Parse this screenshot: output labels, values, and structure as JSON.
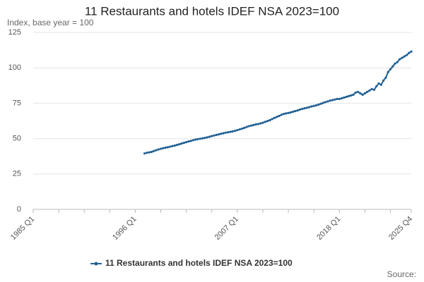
{
  "chart_data": {
    "type": "line",
    "title": "11 Restaurants and hotels IDEF NSA 2023=100",
    "y_label": "Index, base year = 100",
    "source": "Source:",
    "categories": [
      "1985 Q1",
      null,
      null,
      null,
      null,
      null,
      null,
      null,
      null,
      null,
      null,
      null,
      null,
      null,
      null,
      null,
      null,
      null,
      null,
      null,
      null,
      null,
      null,
      null,
      null,
      null,
      null,
      null,
      null,
      null,
      null,
      null,
      null,
      null,
      null,
      null,
      null,
      null,
      null,
      null,
      null,
      null,
      null,
      null,
      "1996 Q1",
      null,
      null,
      null,
      null,
      null,
      null,
      null,
      null,
      null,
      null,
      null,
      null,
      null,
      null,
      null,
      null,
      null,
      null,
      null,
      null,
      null,
      null,
      null,
      null,
      null,
      null,
      null,
      null,
      null,
      null,
      null,
      null,
      null,
      null,
      null,
      null,
      null,
      null,
      null,
      null,
      null,
      null,
      null,
      "2007 Q1",
      null,
      null,
      null,
      null,
      null,
      null,
      null,
      null,
      null,
      null,
      null,
      null,
      null,
      null,
      null,
      null,
      null,
      null,
      null,
      null,
      null,
      null,
      null,
      null,
      null,
      null,
      null,
      null,
      null,
      null,
      null,
      null,
      null,
      null,
      null,
      null,
      null,
      null,
      null,
      null,
      null,
      null,
      null,
      "2018 Q1",
      null,
      null,
      null,
      null,
      null,
      null,
      null,
      null,
      null,
      null,
      null,
      null,
      null,
      null,
      null,
      null,
      null,
      null,
      null,
      null,
      null,
      null,
      null,
      null,
      null,
      null,
      null,
      null,
      null,
      null,
      "2025 Q4"
    ],
    "series": [
      {
        "name": "11 Restaurants and hotels IDEF NSA 2023=100",
        "color": "#206095",
        "values": [
          null,
          null,
          null,
          null,
          null,
          null,
          null,
          null,
          null,
          null,
          null,
          null,
          null,
          null,
          null,
          null,
          null,
          null,
          null,
          null,
          null,
          null,
          null,
          null,
          null,
          null,
          null,
          null,
          null,
          null,
          null,
          null,
          null,
          null,
          null,
          null,
          null,
          null,
          null,
          null,
          null,
          null,
          null,
          null,
          null,
          null,
          null,
          null,
          39.5,
          40,
          40.3,
          40.6,
          41.2,
          41.8,
          42.3,
          42.8,
          43.2,
          43.6,
          43.9,
          44.3,
          44.7,
          45.1,
          45.5,
          46,
          46.5,
          47,
          47.5,
          48,
          48.4,
          48.9,
          49.3,
          49.6,
          49.9,
          50.2,
          50.5,
          50.9,
          51.3,
          51.8,
          52.2,
          52.6,
          53,
          53.4,
          53.8,
          54.2,
          54.5,
          54.8,
          55.1,
          55.5,
          56,
          56.5,
          57,
          57.6,
          58.2,
          58.8,
          59.2,
          59.6,
          60,
          60.3,
          60.7,
          61.2,
          61.8,
          62.4,
          63,
          63.8,
          64.6,
          65.3,
          66,
          66.8,
          67.4,
          67.8,
          68.1,
          68.5,
          69,
          69.4,
          69.9,
          70.5,
          71,
          71.4,
          71.8,
          72.2,
          72.7,
          73.1,
          73.5,
          74,
          74.6,
          75.2,
          75.8,
          76.3,
          76.8,
          77.2,
          77.6,
          78,
          78,
          78.5,
          79,
          79.5,
          80,
          80.5,
          81,
          82.5,
          83,
          82,
          81,
          82,
          83,
          84,
          85,
          84.5,
          87,
          89,
          88,
          91,
          93,
          97,
          99,
          101,
          103,
          104,
          106,
          107,
          108,
          109,
          110.5,
          111.5
        ]
      }
    ],
    "ylim": [
      0,
      125
    ],
    "yticks": [
      0,
      25,
      50,
      75,
      100,
      125
    ],
    "grid": true
  }
}
